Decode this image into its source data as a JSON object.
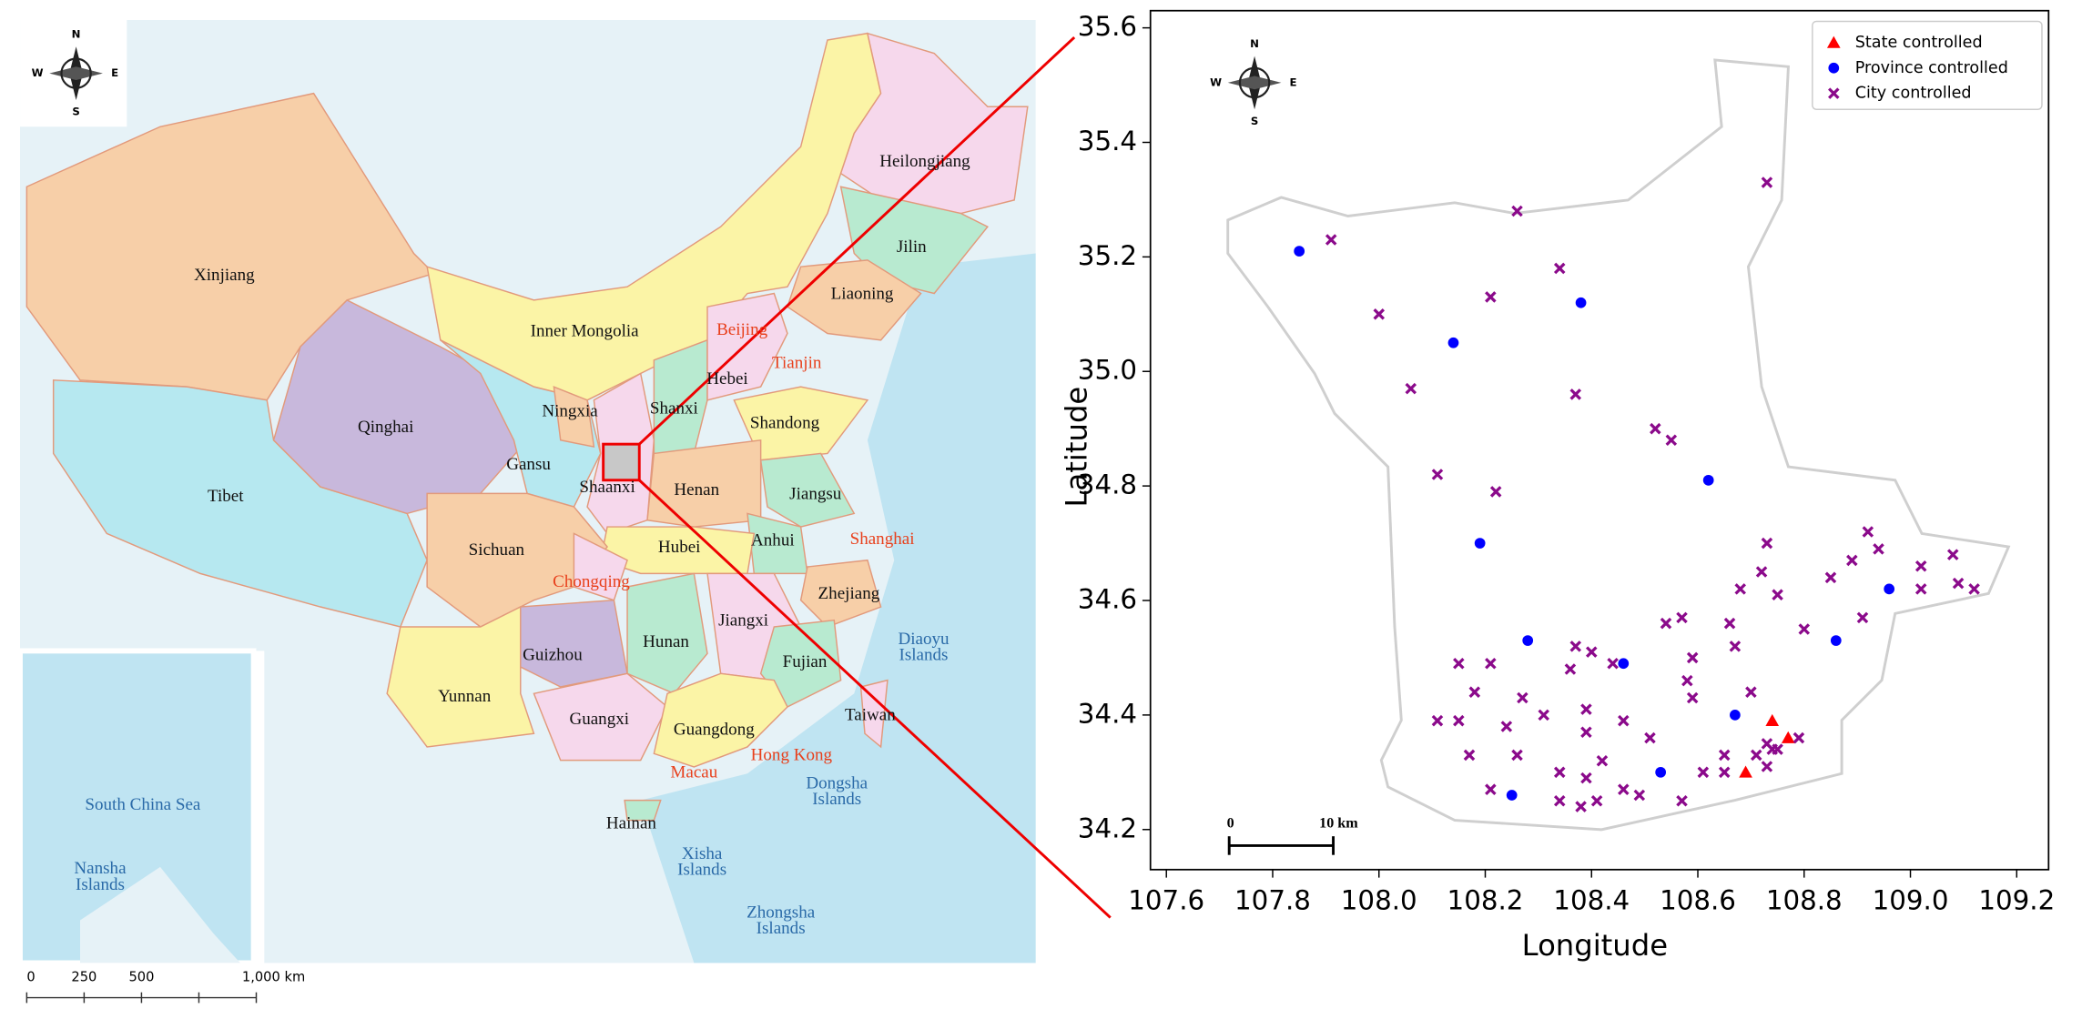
{
  "map": {
    "provinces": [
      "Heilongjiang",
      "Jilin",
      "Liaoning",
      "Xinjiang",
      "Inner Mongolia",
      "Hebei",
      "Ningxia",
      "Shanxi",
      "Shandong",
      "Qinghai",
      "Gansu",
      "Shaanxi",
      "Henan",
      "Jiangsu",
      "Tibet",
      "Anhui",
      "Sichuan",
      "Hubei",
      "Zhejiang",
      "Jiangxi",
      "Hunan",
      "Guizhou",
      "Fujian",
      "Yunnan",
      "Guangxi",
      "Guangdong",
      "Taiwan",
      "Hainan"
    ],
    "municipalities": [
      "Beijing",
      "Tianjin",
      "Chongqing",
      "Shanghai",
      "Hong Kong",
      "Macau"
    ],
    "waters_and_islands": [
      [
        "Diaoyu",
        "Islands"
      ],
      [
        "South China Sea"
      ],
      [
        "Nansha",
        "Islands"
      ],
      [
        "Dongsha",
        "Islands"
      ],
      [
        "Xisha",
        "Islands"
      ],
      [
        "Zhongsha",
        "Islands"
      ]
    ],
    "compass": [
      "N",
      "E",
      "S",
      "W"
    ],
    "scale": [
      "0",
      "250",
      "500",
      "1,000 km"
    ]
  },
  "chart_data": {
    "type": "scatter",
    "x_label": "Longitude",
    "y_label": "Latitude",
    "xlim": [
      107.57,
      109.26
    ],
    "ylim": [
      34.13,
      35.63
    ],
    "xticks": [
      107.6,
      107.8,
      {
        "value": 108.0,
        "label": "108.0"
      },
      108.2,
      108.4,
      108.6,
      108.8,
      {
        "value": 109.0,
        "label": "109.0"
      },
      109.2
    ],
    "yticks": [
      34.2,
      34.4,
      34.6,
      34.8,
      {
        "value": 35.0,
        "label": "35.0"
      },
      35.2,
      35.4,
      35.6
    ],
    "legend": "upper right",
    "compass_labels": [
      "N",
      "E",
      "S",
      "W"
    ],
    "scale_labels": [
      "0",
      "10 km"
    ],
    "series": [
      {
        "name": "State controlled",
        "color": "#ff0000",
        "marker": "triangle",
        "x": [
          108.69,
          108.74,
          108.77
        ],
        "y": [
          34.3,
          34.39,
          34.36
        ]
      },
      {
        "name": "Province controlled",
        "color": "#0000ff",
        "marker": "circle",
        "x": [
          107.85,
          108.14,
          108.38,
          108.62,
          108.19,
          108.28,
          108.46,
          108.67,
          108.53,
          108.25,
          108.86,
          108.96
        ],
        "y": [
          35.21,
          35.05,
          35.12,
          34.81,
          34.7,
          34.53,
          34.49,
          34.4,
          34.3,
          34.26,
          34.53,
          34.62
        ]
      },
      {
        "name": "City controlled",
        "color": "#8b0a8b",
        "marker": "x",
        "x": [
          107.91,
          108.0,
          108.06,
          108.26,
          108.21,
          108.34,
          108.37,
          108.73,
          108.52,
          108.55,
          108.11,
          108.22,
          108.73,
          108.68,
          108.72,
          108.75,
          108.8,
          108.66,
          108.67,
          108.85,
          108.89,
          108.92,
          108.94,
          109.02,
          109.02,
          109.08,
          109.09,
          109.12,
          108.91,
          108.54,
          108.57,
          108.59,
          108.58,
          108.59,
          108.37,
          108.4,
          108.36,
          108.44,
          108.39,
          108.31,
          108.39,
          108.42,
          108.46,
          108.51,
          108.15,
          108.21,
          108.18,
          108.27,
          108.11,
          108.15,
          108.24,
          108.17,
          108.26,
          108.34,
          108.39,
          108.21,
          108.34,
          108.38,
          108.41,
          108.46,
          108.49,
          108.57,
          108.61,
          108.65,
          108.65,
          108.7,
          108.71,
          108.73,
          108.74,
          108.75,
          108.79,
          108.73
        ],
        "y": [
          35.23,
          35.1,
          34.97,
          35.28,
          35.13,
          35.18,
          34.96,
          35.33,
          34.9,
          34.88,
          34.82,
          34.79,
          34.7,
          34.62,
          34.65,
          34.61,
          34.55,
          34.56,
          34.52,
          34.64,
          34.67,
          34.72,
          34.69,
          34.66,
          34.62,
          34.68,
          34.63,
          34.62,
          34.57,
          34.56,
          34.57,
          34.5,
          34.46,
          34.43,
          34.52,
          34.51,
          34.48,
          34.49,
          34.41,
          34.4,
          34.37,
          34.32,
          34.39,
          34.36,
          34.49,
          34.49,
          34.44,
          34.43,
          34.39,
          34.39,
          34.38,
          34.33,
          34.33,
          34.3,
          34.29,
          34.27,
          34.25,
          34.24,
          34.25,
          34.27,
          34.26,
          34.25,
          34.3,
          34.3,
          34.33,
          34.44,
          34.33,
          34.35,
          34.34,
          34.34,
          34.36,
          34.31
        ]
      }
    ]
  }
}
